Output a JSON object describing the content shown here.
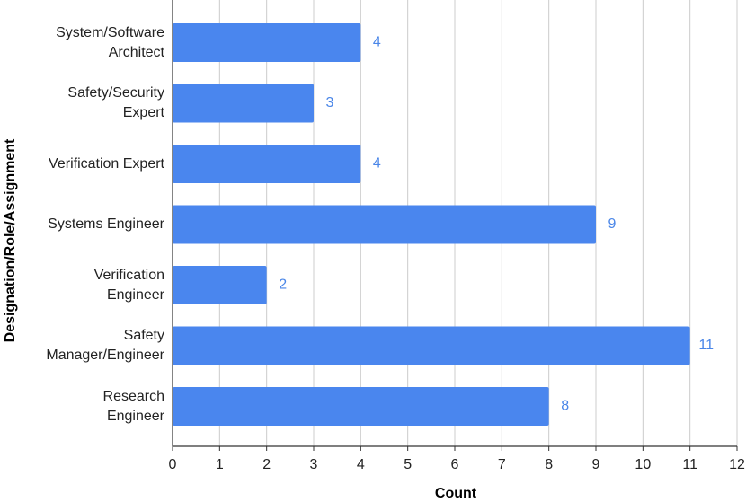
{
  "chart_data": {
    "type": "bar",
    "orientation": "horizontal",
    "x_label": "Count",
    "y_label": "Designation/Role/Assignment",
    "categories": [
      "System/Software\nArchitect",
      "Safety/Security\nExpert",
      "Verification Expert",
      "Systems Engineer",
      "Verification\nEngineer",
      "Safety\nManager/Engineer",
      "Research\nEngineer"
    ],
    "values": [
      4,
      3,
      4,
      9,
      2,
      11,
      8
    ],
    "color": "#4a86ee",
    "label_color": "#4a86e8",
    "xlim": [
      0,
      12
    ],
    "xticks": [
      0,
      1,
      2,
      3,
      4,
      5,
      6,
      7,
      8,
      9,
      10,
      11,
      12
    ],
    "grid": true
  }
}
